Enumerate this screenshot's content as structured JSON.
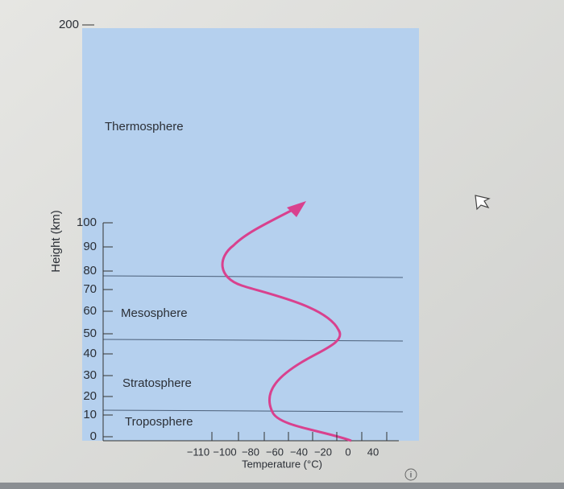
{
  "y_axis": {
    "title": "Height (km)",
    "ticks": [
      "200",
      "100",
      "90",
      "80",
      "70",
      "60",
      "50",
      "40",
      "30",
      "20",
      "10",
      "0"
    ]
  },
  "x_axis": {
    "title": "Temperature (°C)",
    "ticks": [
      "−110",
      "−100",
      "−80",
      "−60",
      "−40",
      "−20",
      "0",
      "40"
    ]
  },
  "layers": [
    {
      "label": "Thermosphere"
    },
    {
      "label": "Mesosphere"
    },
    {
      "label": "Stratosphere"
    },
    {
      "label": "Troposphere"
    }
  ]
}
